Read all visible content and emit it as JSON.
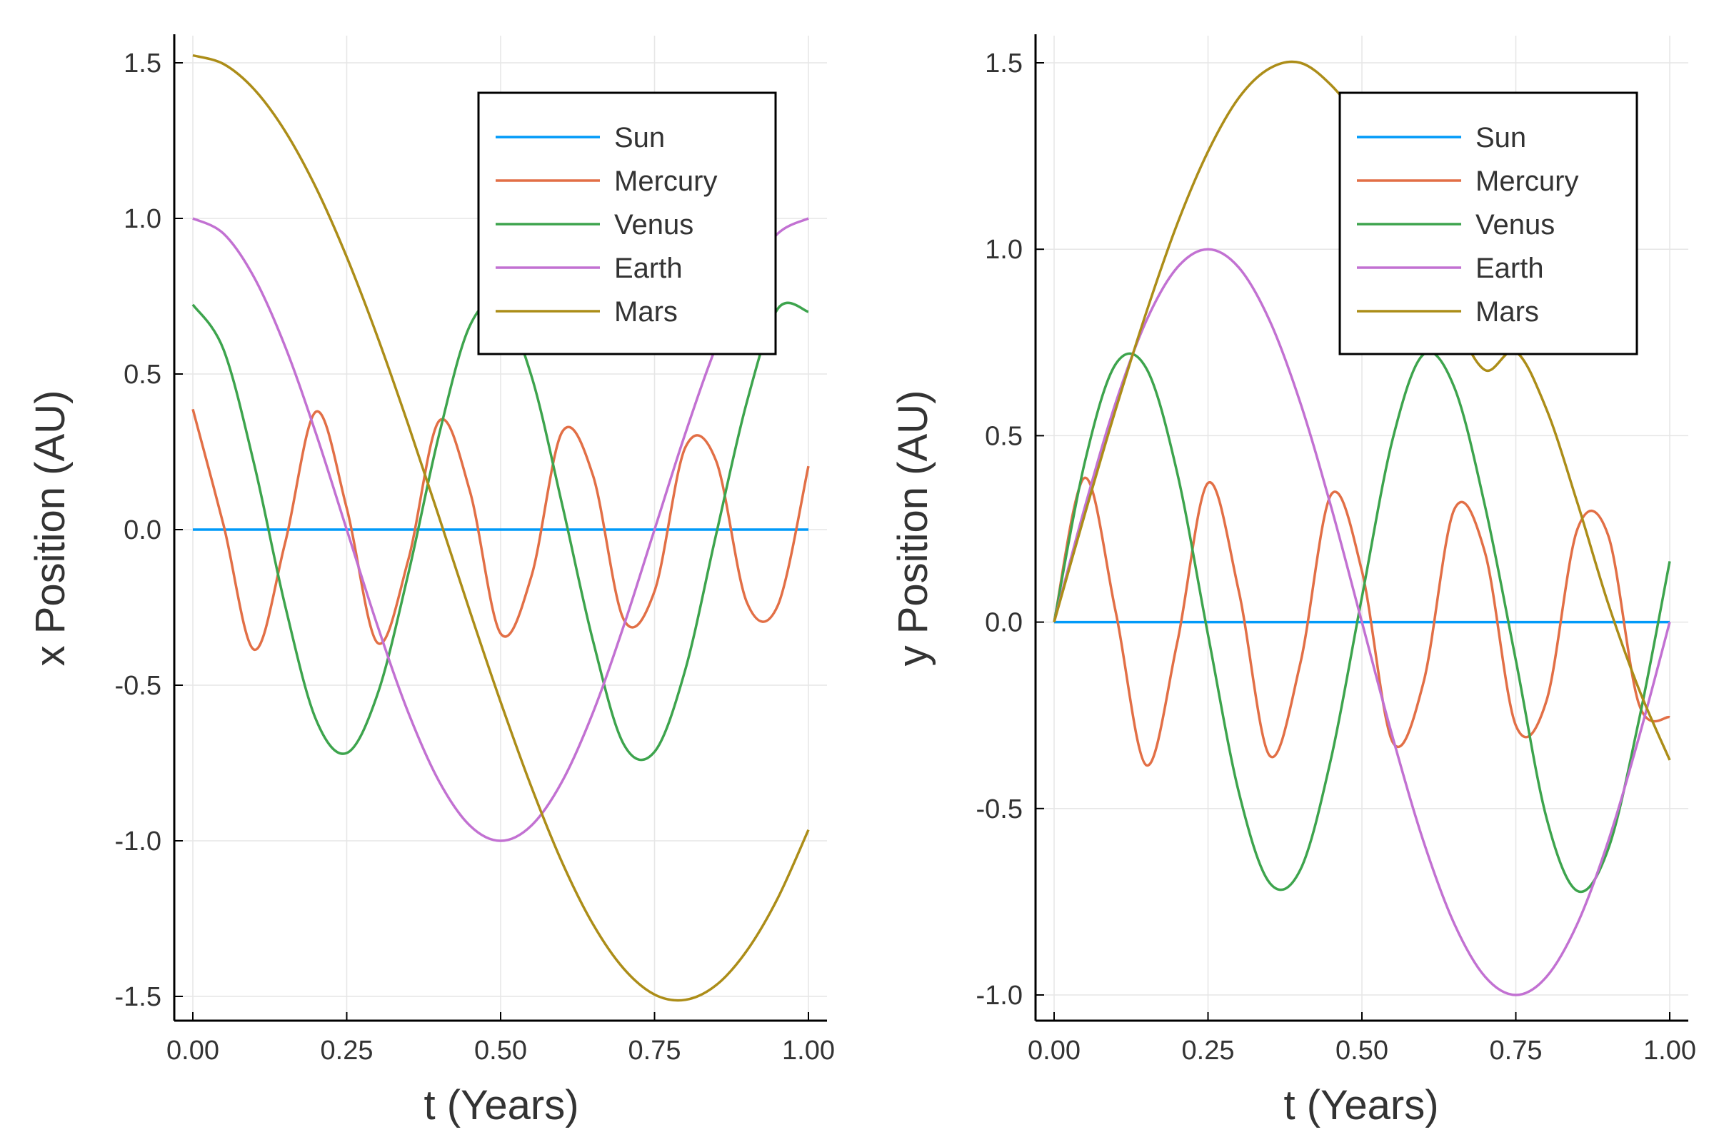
{
  "chart_data": [
    {
      "type": "line",
      "title": "",
      "xlabel": "t (Years)",
      "ylabel": "x Position (AU)",
      "xlim": [
        0,
        1
      ],
      "ylim": [
        -1.5,
        1.5
      ],
      "xticks": [
        0,
        0.25,
        0.5,
        0.75,
        1
      ],
      "xtick_labels": [
        "0.00",
        "0.25",
        "0.50",
        "0.75",
        "1.00"
      ],
      "yticks": [
        -1.5,
        -1.0,
        -0.5,
        0.0,
        0.5,
        1.0,
        1.5
      ],
      "ytick_labels": [
        "-1.5",
        "-1.0",
        "-0.5",
        "0.0",
        "0.5",
        "1.0",
        "1.5"
      ],
      "grid": true,
      "legend_position": "top-right",
      "x": [
        0,
        0.05,
        0.1,
        0.15,
        0.2,
        0.25,
        0.3,
        0.35,
        0.4,
        0.45,
        0.5,
        0.55,
        0.6,
        0.65,
        0.7,
        0.75,
        0.8,
        0.85,
        0.9,
        0.95,
        1.0
      ],
      "series": [
        {
          "name": "Sun",
          "color": "#009af9",
          "values": [
            0,
            0,
            0,
            0,
            0,
            0,
            0,
            0,
            0,
            0,
            0,
            0,
            0,
            0,
            0,
            0,
            0,
            0,
            0,
            0,
            0
          ]
        },
        {
          "name": "Mercury",
          "color": "#e26f46",
          "values": [
            0.387,
            0.014,
            -0.386,
            -0.042,
            0.379,
            0.069,
            -0.364,
            -0.097,
            0.349,
            0.124,
            -0.334,
            -0.15,
            0.314,
            0.174,
            -0.289,
            -0.198,
            0.264,
            0.221,
            -0.234,
            -0.245,
            0.204
          ]
        },
        {
          "name": "Venus",
          "color": "#3da44d",
          "values": [
            0.723,
            0.578,
            0.207,
            -0.245,
            -0.61,
            -0.718,
            -0.529,
            -0.142,
            0.305,
            0.655,
            0.723,
            0.494,
            0.08,
            -0.357,
            -0.69,
            -0.714,
            -0.45,
            -0.016,
            0.41,
            0.709,
            0.7
          ]
        },
        {
          "name": "Earth",
          "color": "#c271d2",
          "values": [
            1.0,
            0.951,
            0.809,
            0.588,
            0.309,
            0.0,
            -0.309,
            -0.588,
            -0.809,
            -0.951,
            -1.0,
            -0.951,
            -0.809,
            -0.588,
            -0.309,
            0.0,
            0.309,
            0.588,
            0.809,
            0.951,
            1.0
          ]
        },
        {
          "name": "Mars",
          "color": "#ac8d18",
          "values": [
            1.524,
            1.496,
            1.414,
            1.28,
            1.099,
            0.876,
            0.619,
            0.337,
            0.04,
            -0.262,
            -0.554,
            -0.827,
            -1.07,
            -1.268,
            -1.411,
            -1.494,
            -1.511,
            -1.464,
            -1.353,
            -1.185,
            -0.965
          ]
        }
      ]
    },
    {
      "type": "line",
      "title": "",
      "xlabel": "t (Years)",
      "ylabel": "y Position (AU)",
      "xlim": [
        0,
        1
      ],
      "ylim": [
        -1.0,
        1.5
      ],
      "xticks": [
        0,
        0.25,
        0.5,
        0.75,
        1
      ],
      "xtick_labels": [
        "0.00",
        "0.25",
        "0.50",
        "0.75",
        "1.00"
      ],
      "yticks": [
        -1.0,
        -0.5,
        0.0,
        0.5,
        1.0,
        1.5
      ],
      "ytick_labels": [
        "-1.0",
        "-0.5",
        "0.0",
        "0.5",
        "1.0",
        "1.5"
      ],
      "grid": true,
      "legend_position": "top-right",
      "x": [
        0,
        0.05,
        0.1,
        0.15,
        0.2,
        0.25,
        0.3,
        0.35,
        0.4,
        0.45,
        0.5,
        0.55,
        0.6,
        0.65,
        0.7,
        0.75,
        0.8,
        0.85,
        0.9,
        0.95,
        1.0
      ],
      "series": [
        {
          "name": "Sun",
          "color": "#009af9",
          "values": [
            0,
            0,
            0,
            0,
            0,
            0,
            0,
            0,
            0,
            0,
            0,
            0,
            0,
            0,
            0,
            0,
            0,
            0,
            0,
            0,
            0
          ]
        },
        {
          "name": "Mercury",
          "color": "#e26f46",
          "values": [
            0.0,
            0.387,
            0.028,
            -0.384,
            -0.055,
            0.373,
            0.083,
            -0.358,
            -0.11,
            0.342,
            0.137,
            -0.322,
            -0.162,
            0.302,
            0.186,
            -0.277,
            -0.21,
            0.249,
            0.233,
            -0.22,
            -0.255
          ]
        },
        {
          "name": "Venus",
          "color": "#3da44d",
          "values": [
            0.0,
            0.43,
            0.692,
            0.68,
            0.4,
            -0.034,
            -0.456,
            -0.699,
            -0.664,
            -0.365,
            0.067,
            0.491,
            0.718,
            0.63,
            0.311,
            -0.102,
            -0.526,
            -0.721,
            -0.609,
            -0.263,
            0.163
          ]
        },
        {
          "name": "Earth",
          "color": "#c271d2",
          "values": [
            0.0,
            0.309,
            0.588,
            0.809,
            0.951,
            1.0,
            0.951,
            0.809,
            0.588,
            0.309,
            0.0,
            -0.309,
            -0.588,
            -0.809,
            -0.951,
            -1.0,
            -0.951,
            -0.809,
            -0.588,
            -0.309,
            0.0
          ]
        },
        {
          "name": "Mars",
          "color": "#ac8d18",
          "values": [
            0.0,
            0.29,
            0.57,
            0.832,
            1.068,
            1.262,
            1.406,
            1.485,
            1.5,
            1.44,
            1.335,
            1.19,
            1.01,
            0.815,
            0.676,
            0.725,
            0.57,
            0.32,
            0.05,
            -0.18,
            -0.37
          ]
        }
      ]
    }
  ]
}
